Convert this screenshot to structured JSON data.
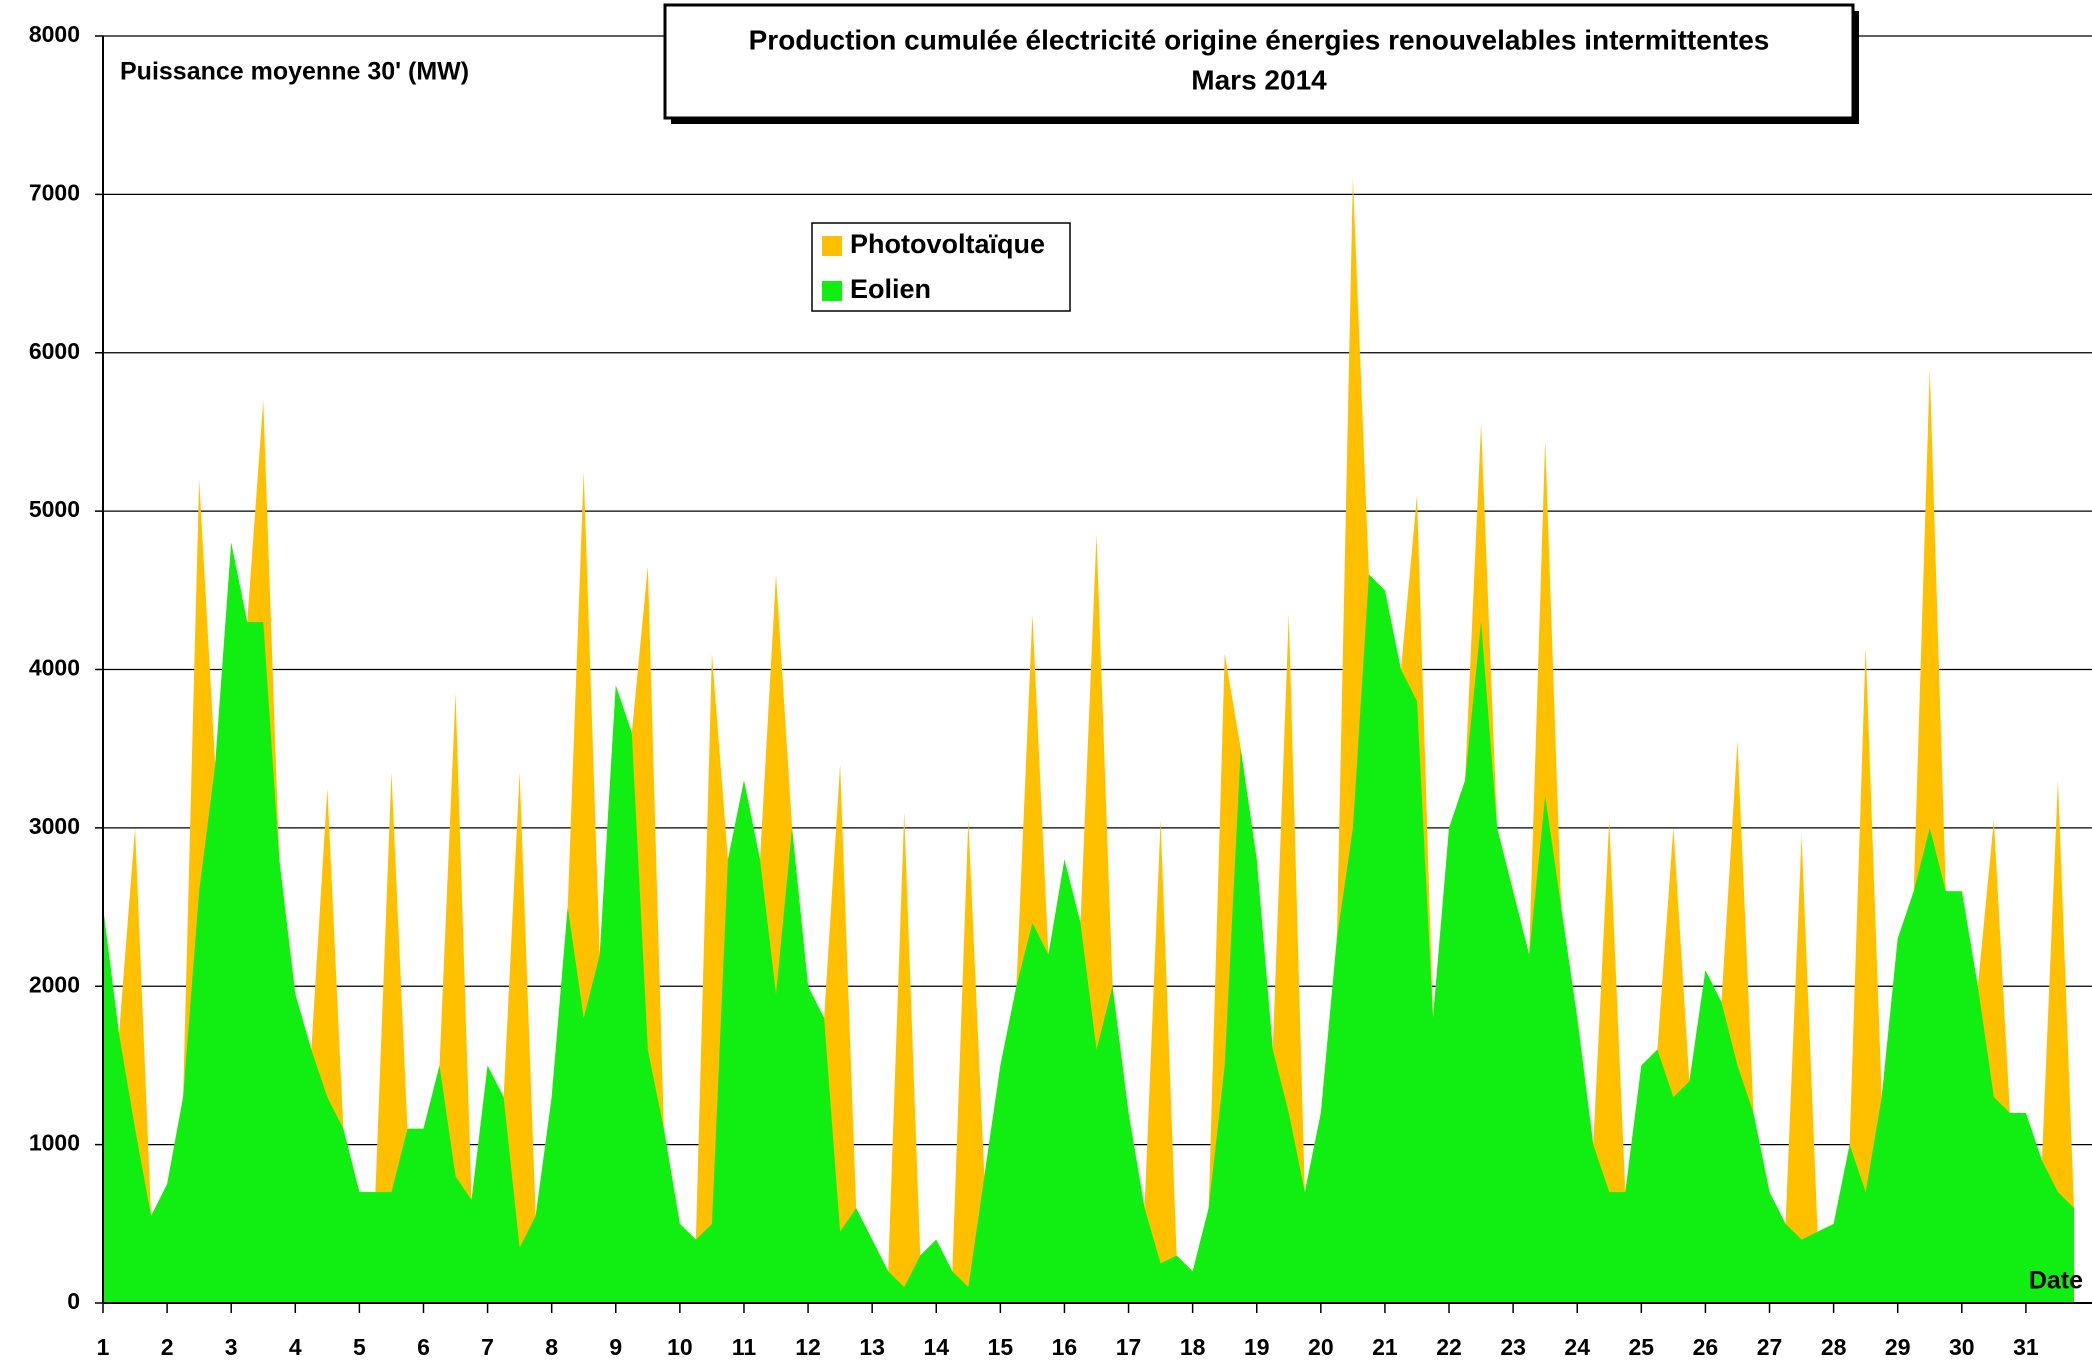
{
  "chart_data": {
    "type": "stacked-area",
    "title": "Production cumulée électricité origine énergies renouvelables intermittentes",
    "subtitle": "Mars 2014",
    "ylabel": "Puissance moyenne 30' (MW)",
    "xlabel": "Date",
    "x": [
      1,
      1.25,
      1.5,
      1.75,
      2,
      2.25,
      2.5,
      2.75,
      3,
      3.25,
      3.5,
      3.75,
      4,
      4.25,
      4.5,
      4.75,
      5,
      5.25,
      5.5,
      5.75,
      6,
      6.25,
      6.5,
      6.75,
      7,
      7.25,
      7.5,
      7.75,
      8,
      8.25,
      8.5,
      8.75,
      9,
      9.25,
      9.5,
      9.75,
      10,
      10.25,
      10.5,
      10.75,
      11,
      11.25,
      11.5,
      11.75,
      12,
      12.25,
      12.5,
      12.75,
      13,
      13.25,
      13.5,
      13.75,
      14,
      14.25,
      14.5,
      14.75,
      15,
      15.25,
      15.5,
      15.75,
      16,
      16.25,
      16.5,
      16.75,
      17,
      17.25,
      17.5,
      17.75,
      18,
      18.25,
      18.5,
      18.75,
      19,
      19.25,
      19.5,
      19.75,
      20,
      20.25,
      20.5,
      20.75,
      21,
      21.25,
      21.5,
      21.75,
      22,
      22.25,
      22.5,
      22.75,
      23,
      23.25,
      23.5,
      23.75,
      24,
      24.25,
      24.5,
      24.75,
      25,
      25.25,
      25.5,
      25.75,
      26,
      26.25,
      26.5,
      26.75,
      27,
      27.25,
      27.5,
      27.75,
      28,
      28.25,
      28.5,
      28.75,
      29,
      29.25,
      29.5,
      29.75,
      30,
      30.25,
      30.5,
      30.75,
      31,
      31.25,
      31.5,
      31.75
    ],
    "series": [
      {
        "name": "Photovoltaïque",
        "color": "#ffc000",
        "values": [
          0,
          0,
          1900,
          0,
          0,
          0,
          2600,
          0,
          0,
          0,
          1400,
          0,
          0,
          0,
          1950,
          0,
          0,
          0,
          2650,
          0,
          0,
          0,
          3050,
          0,
          0,
          0,
          3000,
          0,
          0,
          0,
          3450,
          0,
          0,
          0,
          3050,
          0,
          0,
          0,
          3600,
          0,
          0,
          0,
          2650,
          0,
          0,
          0,
          2950,
          0,
          0,
          0,
          3000,
          0,
          0,
          0,
          2950,
          0,
          0,
          0,
          1950,
          0,
          0,
          0,
          3250,
          0,
          0,
          0,
          2800,
          0,
          0,
          0,
          2600,
          0,
          0,
          0,
          3150,
          0,
          0,
          0,
          4100,
          0,
          0,
          0,
          1300,
          0,
          0,
          0,
          1250,
          0,
          0,
          0,
          2250,
          0,
          0,
          0,
          2350,
          0,
          0,
          0,
          1700,
          0,
          0,
          0,
          2050,
          0,
          0,
          0,
          2550,
          0,
          0,
          0,
          3450,
          0,
          0,
          0,
          2900,
          0,
          0,
          0,
          1750,
          0,
          0,
          0,
          2600,
          0
        ]
      },
      {
        "name": "Eolien",
        "color": "#11ee11",
        "values": [
          2500,
          1700,
          1100,
          550,
          750,
          1300,
          2600,
          3400,
          4800,
          4300,
          4300,
          2800,
          1950,
          1600,
          1300,
          1100,
          700,
          700,
          700,
          1100,
          1100,
          1500,
          800,
          650,
          1500,
          1300,
          350,
          550,
          1300,
          2500,
          1800,
          2200,
          3900,
          3600,
          1600,
          1100,
          500,
          400,
          500,
          2800,
          3300,
          2800,
          1950,
          3000,
          2000,
          1800,
          450,
          600,
          400,
          200,
          100,
          300,
          400,
          200,
          100,
          800,
          1500,
          2000,
          2400,
          2200,
          2800,
          2400,
          1600,
          2000,
          1200,
          600,
          250,
          300,
          200,
          600,
          1500,
          3500,
          2800,
          1600,
          1200,
          700,
          1200,
          2300,
          3000,
          4600,
          4500,
          4000,
          3800,
          1800,
          3000,
          3300,
          4300,
          3000,
          2600,
          2200,
          3200,
          2500,
          1800,
          1000,
          700,
          700,
          1500,
          1600,
          1300,
          1400,
          2100,
          1900,
          1500,
          1200,
          700,
          500,
          400,
          450,
          500,
          1000,
          700,
          1300,
          2300,
          2600,
          3000,
          2600,
          2600,
          2000,
          1300,
          1200,
          1200,
          900,
          700,
          600
        ]
      }
    ],
    "xlim": [
      1,
      32
    ],
    "xticks": [
      1,
      2,
      3,
      4,
      5,
      6,
      7,
      8,
      9,
      10,
      11,
      12,
      13,
      14,
      15,
      16,
      17,
      18,
      19,
      20,
      21,
      22,
      23,
      24,
      25,
      26,
      27,
      28,
      29,
      30,
      31
    ],
    "ylim": [
      0,
      8000
    ],
    "yticks": [
      0,
      1000,
      2000,
      3000,
      4000,
      5000,
      6000,
      7000,
      8000
    ],
    "grid": true
  }
}
